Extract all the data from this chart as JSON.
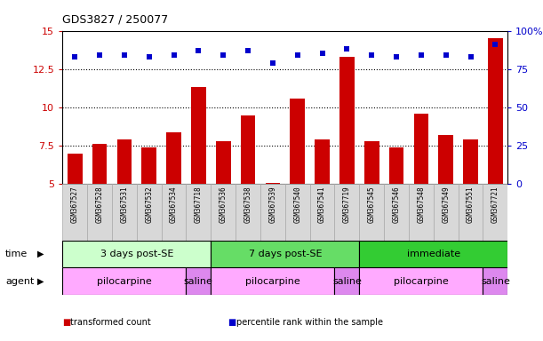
{
  "title": "GDS3827 / 250077",
  "samples": [
    "GSM367527",
    "GSM367528",
    "GSM367531",
    "GSM367532",
    "GSM367534",
    "GSM367718",
    "GSM367536",
    "GSM367538",
    "GSM367539",
    "GSM367540",
    "GSM367541",
    "GSM367719",
    "GSM367545",
    "GSM367546",
    "GSM367548",
    "GSM367549",
    "GSM367551",
    "GSM367721"
  ],
  "bar_values": [
    7.0,
    7.6,
    7.9,
    7.4,
    8.4,
    11.3,
    7.8,
    9.5,
    5.1,
    10.6,
    7.9,
    13.3,
    7.8,
    7.4,
    9.6,
    8.2,
    7.9,
    14.5
  ],
  "dot_values": [
    83,
    84,
    84,
    83,
    84,
    87,
    84,
    87,
    79,
    84,
    85,
    88,
    84,
    83,
    84,
    84,
    83,
    91
  ],
  "bar_color": "#cc0000",
  "dot_color": "#0000cc",
  "ylim_left": [
    5,
    15
  ],
  "ylim_right": [
    0,
    100
  ],
  "yticks_left": [
    5,
    7.5,
    10,
    12.5,
    15
  ],
  "ytick_labels_left": [
    "5",
    "7.5",
    "10",
    "12.5",
    "15"
  ],
  "yticks_right": [
    0,
    25,
    50,
    75,
    100
  ],
  "ytick_labels_right": [
    "0",
    "25",
    "50",
    "75",
    "100%"
  ],
  "grid_values": [
    7.5,
    10.0,
    12.5
  ],
  "time_groups": [
    {
      "label": "3 days post-SE",
      "start": 0,
      "end": 5,
      "color": "#ccffcc"
    },
    {
      "label": "7 days post-SE",
      "start": 6,
      "end": 11,
      "color": "#66dd66"
    },
    {
      "label": "immediate",
      "start": 12,
      "end": 17,
      "color": "#33cc33"
    }
  ],
  "agent_groups": [
    {
      "label": "pilocarpine",
      "start": 0,
      "end": 4,
      "color": "#ffaaff"
    },
    {
      "label": "saline",
      "start": 5,
      "end": 5,
      "color": "#dd88ee"
    },
    {
      "label": "pilocarpine",
      "start": 6,
      "end": 10,
      "color": "#ffaaff"
    },
    {
      "label": "saline",
      "start": 11,
      "end": 11,
      "color": "#dd88ee"
    },
    {
      "label": "pilocarpine",
      "start": 12,
      "end": 16,
      "color": "#ffaaff"
    },
    {
      "label": "saline",
      "start": 17,
      "end": 17,
      "color": "#dd88ee"
    }
  ],
  "legend_items": [
    {
      "label": "transformed count",
      "color": "#cc0000"
    },
    {
      "label": "percentile rank within the sample",
      "color": "#0000cc"
    }
  ],
  "time_label": "time",
  "agent_label": "agent",
  "background_color": "#ffffff",
  "bar_width": 0.6,
  "xtick_bg": "#d8d8d8",
  "xtick_border": "#aaaaaa"
}
